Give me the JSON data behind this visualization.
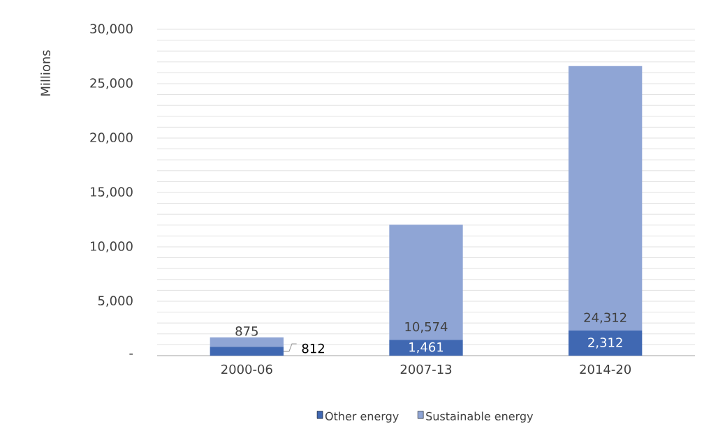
{
  "chart_data": {
    "type": "bar",
    "stacked": true,
    "ylabel": "Millions",
    "categories": [
      "2000-06",
      "2007-13",
      "2014-20"
    ],
    "series": [
      {
        "name": "Other energy",
        "color": "#4068b2",
        "values": [
          812,
          1461,
          2312
        ],
        "value_labels": [
          "812",
          "1,461",
          "2,312"
        ]
      },
      {
        "name": "Sustainable energy",
        "color": "#8fa5d5",
        "values": [
          875,
          10574,
          24312
        ],
        "value_labels": [
          "875",
          "10,574",
          "24,312"
        ]
      }
    ],
    "ylim": [
      0,
      30000
    ],
    "yticks": [
      {
        "value": 0,
        "label": "-"
      },
      {
        "value": 1000,
        "label": null
      },
      {
        "value": 2000,
        "label": null
      },
      {
        "value": 3000,
        "label": null
      },
      {
        "value": 4000,
        "label": null
      },
      {
        "value": 5000,
        "label": "5,000"
      },
      {
        "value": 6000,
        "label": null
      },
      {
        "value": 7000,
        "label": null
      },
      {
        "value": 8000,
        "label": null
      },
      {
        "value": 9000,
        "label": null
      },
      {
        "value": 10000,
        "label": "10,000"
      },
      {
        "value": 11000,
        "label": null
      },
      {
        "value": 12000,
        "label": null
      },
      {
        "value": 13000,
        "label": null
      },
      {
        "value": 14000,
        "label": null
      },
      {
        "value": 15000,
        "label": "15,000"
      },
      {
        "value": 16000,
        "label": null
      },
      {
        "value": 17000,
        "label": null
      },
      {
        "value": 18000,
        "label": null
      },
      {
        "value": 19000,
        "label": null
      },
      {
        "value": 20000,
        "label": "20,000"
      },
      {
        "value": 21000,
        "label": null
      },
      {
        "value": 22000,
        "label": null
      },
      {
        "value": 23000,
        "label": null
      },
      {
        "value": 24000,
        "label": null
      },
      {
        "value": 25000,
        "label": "25,000"
      },
      {
        "value": 26000,
        "label": null
      },
      {
        "value": 27000,
        "label": null
      },
      {
        "value": 28000,
        "label": null
      },
      {
        "value": 29000,
        "label": null
      },
      {
        "value": 30000,
        "label": "30,000"
      }
    ],
    "grid": "y",
    "legend": "bottom"
  }
}
